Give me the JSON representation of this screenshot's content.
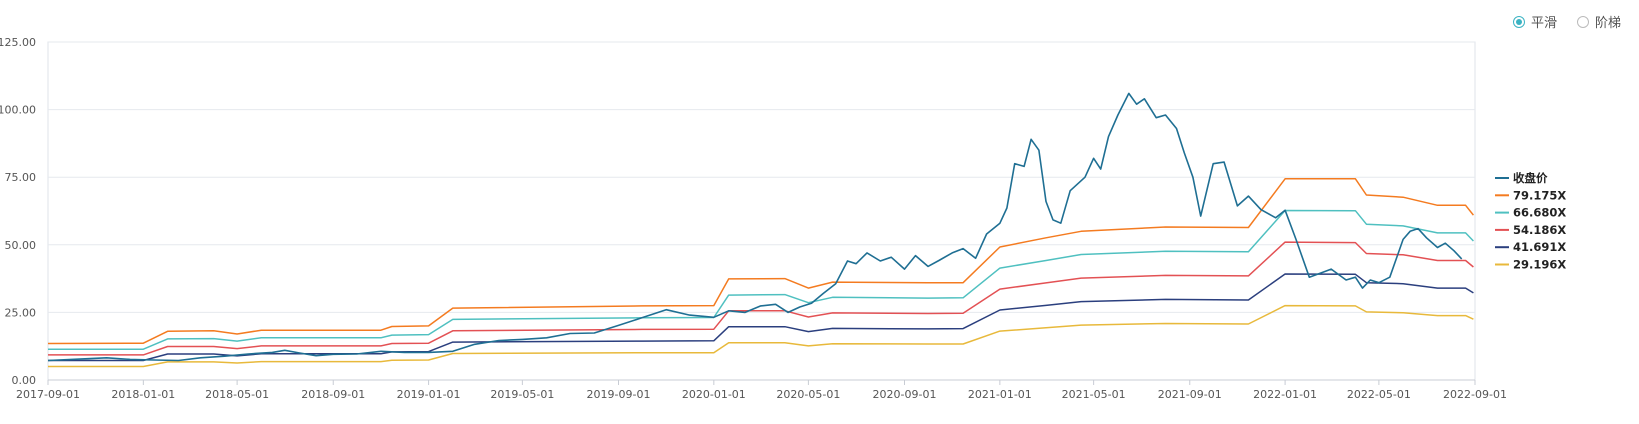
{
  "mode_toggle": {
    "options": [
      {
        "label": "平滑",
        "selected": true
      },
      {
        "label": "阶梯",
        "selected": false
      }
    ],
    "accent_color": "#3bb3c3"
  },
  "chart_data": {
    "type": "line",
    "xlabel": "",
    "ylabel": "",
    "ylim": [
      0,
      125
    ],
    "y_ticks": [
      "0.00",
      "25.00",
      "50.00",
      "75.00",
      "100.00",
      "125.00"
    ],
    "x_ticks": [
      "2017-09-01",
      "2018-01-01",
      "2018-05-01",
      "2018-09-01",
      "2019-01-01",
      "2019-05-01",
      "2019-09-01",
      "2020-01-01",
      "2020-05-01",
      "2020-09-01",
      "2021-01-01",
      "2021-05-01",
      "2021-09-01",
      "2022-01-01",
      "2022-05-01",
      "2022-09-01"
    ],
    "xlim": [
      "2017-09-01",
      "2022-09-01"
    ],
    "grid": true,
    "legend_position": "right",
    "series": [
      {
        "name": "收盘价",
        "color": "#1f6f93",
        "points": [
          [
            "2017-09-01",
            7.2
          ],
          [
            "2017-10-15",
            7.8
          ],
          [
            "2017-11-15",
            8.2
          ],
          [
            "2017-12-15",
            7.6
          ],
          [
            "2018-01-15",
            7.4
          ],
          [
            "2018-02-15",
            7.2
          ],
          [
            "2018-03-15",
            8.2
          ],
          [
            "2018-04-15",
            8.8
          ],
          [
            "2018-05-15",
            9.6
          ],
          [
            "2018-06-15",
            10.2
          ],
          [
            "2018-07-01",
            11.0
          ],
          [
            "2018-07-20",
            10.0
          ],
          [
            "2018-08-10",
            9.0
          ],
          [
            "2018-09-01",
            9.5
          ],
          [
            "2018-10-01",
            9.6
          ],
          [
            "2018-11-01",
            10.6
          ],
          [
            "2018-12-01",
            10.2
          ],
          [
            "2019-01-01",
            10.2
          ],
          [
            "2019-02-01",
            10.6
          ],
          [
            "2019-03-01",
            13.2
          ],
          [
            "2019-04-01",
            14.6
          ],
          [
            "2019-05-01",
            15.0
          ],
          [
            "2019-06-01",
            15.6
          ],
          [
            "2019-07-01",
            17.2
          ],
          [
            "2019-08-01",
            17.4
          ],
          [
            "2019-09-01",
            20.2
          ],
          [
            "2019-10-01",
            23.0
          ],
          [
            "2019-11-01",
            26.0
          ],
          [
            "2019-12-01",
            24.0
          ],
          [
            "2020-01-01",
            23.2
          ],
          [
            "2020-01-20",
            25.6
          ],
          [
            "2020-02-10",
            25.0
          ],
          [
            "2020-03-01",
            27.4
          ],
          [
            "2020-03-20",
            28.0
          ],
          [
            "2020-04-05",
            25.0
          ],
          [
            "2020-04-20",
            27.0
          ],
          [
            "2020-05-05",
            28.4
          ],
          [
            "2020-05-20",
            32.0
          ],
          [
            "2020-06-05",
            35.6
          ],
          [
            "2020-06-20",
            44.0
          ],
          [
            "2020-07-01",
            43.0
          ],
          [
            "2020-07-15",
            47.0
          ],
          [
            "2020-08-01",
            44.0
          ],
          [
            "2020-08-15",
            45.4
          ],
          [
            "2020-09-01",
            41.0
          ],
          [
            "2020-09-15",
            46.0
          ],
          [
            "2020-10-01",
            42.0
          ],
          [
            "2020-10-15",
            44.2
          ],
          [
            "2020-11-01",
            47.0
          ],
          [
            "2020-11-15",
            48.6
          ],
          [
            "2020-12-01",
            45.0
          ],
          [
            "2020-12-15",
            54.0
          ],
          [
            "2021-01-01",
            58.0
          ],
          [
            "2021-01-10",
            63.6
          ],
          [
            "2021-01-20",
            80.0
          ],
          [
            "2021-02-01",
            79.0
          ],
          [
            "2021-02-10",
            89.0
          ],
          [
            "2021-02-20",
            85.0
          ],
          [
            "2021-03-01",
            66.0
          ],
          [
            "2021-03-10",
            59.2
          ],
          [
            "2021-03-20",
            58.0
          ],
          [
            "2021-04-01",
            70.0
          ],
          [
            "2021-04-20",
            75.0
          ],
          [
            "2021-05-01",
            82.0
          ],
          [
            "2021-05-10",
            78.0
          ],
          [
            "2021-05-20",
            90.0
          ],
          [
            "2021-06-01",
            98.0
          ],
          [
            "2021-06-15",
            106.0
          ],
          [
            "2021-06-25",
            102.0
          ],
          [
            "2021-07-05",
            104.0
          ],
          [
            "2021-07-20",
            97.0
          ],
          [
            "2021-08-01",
            98.0
          ],
          [
            "2021-08-15",
            93.0
          ],
          [
            "2021-08-25",
            84.0
          ],
          [
            "2021-09-05",
            75.0
          ],
          [
            "2021-09-15",
            60.6
          ],
          [
            "2021-10-01",
            80.0
          ],
          [
            "2021-10-15",
            80.6
          ],
          [
            "2021-11-01",
            64.4
          ],
          [
            "2021-11-15",
            68.0
          ],
          [
            "2021-12-01",
            63.0
          ],
          [
            "2021-12-20",
            60.0
          ],
          [
            "2022-01-01",
            62.8
          ],
          [
            "2022-01-15",
            52.0
          ],
          [
            "2022-02-01",
            38.0
          ],
          [
            "2022-02-20",
            40.0
          ],
          [
            "2022-03-01",
            41.0
          ],
          [
            "2022-03-20",
            37.0
          ],
          [
            "2022-04-01",
            38.0
          ],
          [
            "2022-04-10",
            34.0
          ],
          [
            "2022-04-20",
            37.0
          ],
          [
            "2022-05-01",
            36.0
          ],
          [
            "2022-05-15",
            38.0
          ],
          [
            "2022-06-01",
            52.0
          ],
          [
            "2022-06-10",
            55.0
          ],
          [
            "2022-06-20",
            56.0
          ],
          [
            "2022-07-01",
            52.6
          ],
          [
            "2022-07-15",
            49.0
          ],
          [
            "2022-07-25",
            50.6
          ],
          [
            "2022-08-05",
            47.8
          ],
          [
            "2022-08-15",
            44.8
          ]
        ]
      },
      {
        "name": "79.175X",
        "color": "#f47b20",
        "points": [
          [
            "2017-09-01",
            13.5
          ],
          [
            "2018-01-01",
            13.6
          ],
          [
            "2018-02-01",
            18.0
          ],
          [
            "2018-04-01",
            18.2
          ],
          [
            "2018-05-01",
            17.0
          ],
          [
            "2018-06-01",
            18.4
          ],
          [
            "2018-11-01",
            18.4
          ],
          [
            "2018-11-15",
            19.8
          ],
          [
            "2019-01-01",
            20.0
          ],
          [
            "2019-02-01",
            26.6
          ],
          [
            "2019-10-01",
            27.4
          ],
          [
            "2020-01-01",
            27.5
          ],
          [
            "2020-01-20",
            37.4
          ],
          [
            "2020-04-01",
            37.5
          ],
          [
            "2020-05-01",
            34.0
          ],
          [
            "2020-06-01",
            36.2
          ],
          [
            "2020-10-01",
            36.0
          ],
          [
            "2020-11-15",
            36.0
          ],
          [
            "2021-01-01",
            49.2
          ],
          [
            "2021-03-01",
            52.6
          ],
          [
            "2021-04-15",
            55.0
          ],
          [
            "2021-08-01",
            56.6
          ],
          [
            "2021-11-15",
            56.4
          ],
          [
            "2022-01-01",
            74.4
          ],
          [
            "2022-04-01",
            74.4
          ],
          [
            "2022-04-15",
            68.4
          ],
          [
            "2022-06-01",
            67.6
          ],
          [
            "2022-07-15",
            64.6
          ],
          [
            "2022-08-20",
            64.6
          ],
          [
            "2022-08-30",
            61.0
          ]
        ]
      },
      {
        "name": "66.680X",
        "color": "#4fc0c0",
        "points": [
          [
            "2017-09-01",
            11.4
          ],
          [
            "2018-01-01",
            11.4
          ],
          [
            "2018-02-01",
            15.2
          ],
          [
            "2018-04-01",
            15.3
          ],
          [
            "2018-05-01",
            14.4
          ],
          [
            "2018-06-01",
            15.6
          ],
          [
            "2018-11-01",
            15.6
          ],
          [
            "2018-11-15",
            16.6
          ],
          [
            "2019-01-01",
            16.8
          ],
          [
            "2019-02-01",
            22.4
          ],
          [
            "2019-10-01",
            23.0
          ],
          [
            "2020-01-01",
            23.1
          ],
          [
            "2020-01-20",
            31.4
          ],
          [
            "2020-04-01",
            31.6
          ],
          [
            "2020-05-01",
            28.6
          ],
          [
            "2020-06-01",
            30.6
          ],
          [
            "2020-10-01",
            30.3
          ],
          [
            "2020-11-15",
            30.4
          ],
          [
            "2021-01-01",
            41.4
          ],
          [
            "2021-03-01",
            44.2
          ],
          [
            "2021-04-15",
            46.4
          ],
          [
            "2021-08-01",
            47.6
          ],
          [
            "2021-11-15",
            47.4
          ],
          [
            "2022-01-01",
            62.7
          ],
          [
            "2022-04-01",
            62.6
          ],
          [
            "2022-04-15",
            57.6
          ],
          [
            "2022-06-01",
            57.0
          ],
          [
            "2022-07-15",
            54.4
          ],
          [
            "2022-08-20",
            54.4
          ],
          [
            "2022-08-30",
            51.4
          ]
        ]
      },
      {
        "name": "54.186X",
        "color": "#e35154",
        "points": [
          [
            "2017-09-01",
            9.3
          ],
          [
            "2018-01-01",
            9.3
          ],
          [
            "2018-02-01",
            12.4
          ],
          [
            "2018-04-01",
            12.4
          ],
          [
            "2018-05-01",
            11.6
          ],
          [
            "2018-06-01",
            12.6
          ],
          [
            "2018-11-01",
            12.6
          ],
          [
            "2018-11-15",
            13.5
          ],
          [
            "2019-01-01",
            13.6
          ],
          [
            "2019-02-01",
            18.2
          ],
          [
            "2019-10-01",
            18.7
          ],
          [
            "2020-01-01",
            18.8
          ],
          [
            "2020-01-20",
            25.6
          ],
          [
            "2020-04-01",
            25.6
          ],
          [
            "2020-05-01",
            23.3
          ],
          [
            "2020-06-01",
            24.8
          ],
          [
            "2020-10-01",
            24.6
          ],
          [
            "2020-11-15",
            24.7
          ],
          [
            "2021-01-01",
            33.6
          ],
          [
            "2021-03-01",
            35.9
          ],
          [
            "2021-04-15",
            37.7
          ],
          [
            "2021-08-01",
            38.7
          ],
          [
            "2021-11-15",
            38.5
          ],
          [
            "2022-01-01",
            51.0
          ],
          [
            "2022-04-01",
            50.8
          ],
          [
            "2022-04-15",
            46.8
          ],
          [
            "2022-06-01",
            46.3
          ],
          [
            "2022-07-15",
            44.2
          ],
          [
            "2022-08-20",
            44.2
          ],
          [
            "2022-08-30",
            41.8
          ]
        ]
      },
      {
        "name": "41.691X",
        "color": "#2b3f7e",
        "points": [
          [
            "2017-09-01",
            7.2
          ],
          [
            "2018-01-01",
            7.2
          ],
          [
            "2018-02-01",
            9.6
          ],
          [
            "2018-04-01",
            9.6
          ],
          [
            "2018-05-01",
            8.9
          ],
          [
            "2018-06-01",
            9.7
          ],
          [
            "2018-11-01",
            9.7
          ],
          [
            "2018-11-15",
            10.4
          ],
          [
            "2019-01-01",
            10.5
          ],
          [
            "2019-02-01",
            14.0
          ],
          [
            "2019-10-01",
            14.4
          ],
          [
            "2020-01-01",
            14.5
          ],
          [
            "2020-01-20",
            19.7
          ],
          [
            "2020-04-01",
            19.7
          ],
          [
            "2020-05-01",
            17.9
          ],
          [
            "2020-06-01",
            19.1
          ],
          [
            "2020-10-01",
            18.9
          ],
          [
            "2020-11-15",
            19.0
          ],
          [
            "2021-01-01",
            25.9
          ],
          [
            "2021-03-01",
            27.6
          ],
          [
            "2021-04-15",
            29.0
          ],
          [
            "2021-08-01",
            29.8
          ],
          [
            "2021-11-15",
            29.6
          ],
          [
            "2022-01-01",
            39.2
          ],
          [
            "2022-04-01",
            39.1
          ],
          [
            "2022-04-15",
            36.0
          ],
          [
            "2022-06-01",
            35.6
          ],
          [
            "2022-07-15",
            34.0
          ],
          [
            "2022-08-20",
            34.0
          ],
          [
            "2022-08-30",
            32.2
          ]
        ]
      },
      {
        "name": "29.196X",
        "color": "#e8b93b",
        "points": [
          [
            "2017-09-01",
            5.0
          ],
          [
            "2018-01-01",
            5.0
          ],
          [
            "2018-02-01",
            6.7
          ],
          [
            "2018-04-01",
            6.7
          ],
          [
            "2018-05-01",
            6.3
          ],
          [
            "2018-06-01",
            6.8
          ],
          [
            "2018-11-01",
            6.8
          ],
          [
            "2018-11-15",
            7.3
          ],
          [
            "2019-01-01",
            7.4
          ],
          [
            "2019-02-01",
            9.8
          ],
          [
            "2019-10-01",
            10.1
          ],
          [
            "2020-01-01",
            10.1
          ],
          [
            "2020-01-20",
            13.8
          ],
          [
            "2020-04-01",
            13.8
          ],
          [
            "2020-05-01",
            12.6
          ],
          [
            "2020-06-01",
            13.4
          ],
          [
            "2020-10-01",
            13.3
          ],
          [
            "2020-11-15",
            13.3
          ],
          [
            "2021-01-01",
            18.1
          ],
          [
            "2021-03-01",
            19.3
          ],
          [
            "2021-04-15",
            20.3
          ],
          [
            "2021-08-01",
            20.9
          ],
          [
            "2021-11-15",
            20.7
          ],
          [
            "2022-01-01",
            27.5
          ],
          [
            "2022-04-01",
            27.4
          ],
          [
            "2022-04-15",
            25.2
          ],
          [
            "2022-06-01",
            24.9
          ],
          [
            "2022-07-15",
            23.8
          ],
          [
            "2022-08-20",
            23.8
          ],
          [
            "2022-08-30",
            22.5
          ]
        ]
      }
    ]
  }
}
